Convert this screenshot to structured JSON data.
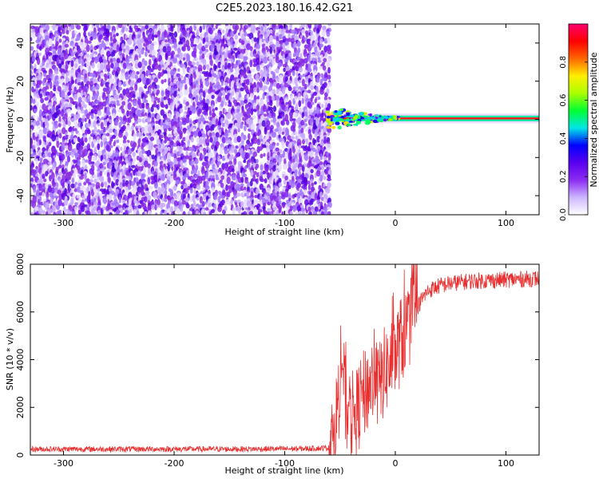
{
  "figure_title": "C2E5.2023.180.16.42.G21",
  "colors": {
    "snr_line": "#e83030",
    "axis": "#000000",
    "colormap": [
      "#ffffff",
      "#cdb6ff",
      "#8b2cf2",
      "#5a00f0",
      "#0000ff",
      "#00e6e6",
      "#00ff33",
      "#aaff00",
      "#ffee00",
      "#ff6600",
      "#ff0000",
      "#ff0070"
    ]
  },
  "chart_data": [
    {
      "type": "heatmap",
      "xlabel": "Height of straight line (km)",
      "ylabel": "Frequency (Hz)",
      "xlim": [
        -330,
        130
      ],
      "ylim": [
        -50,
        50
      ],
      "xticks": [
        -300,
        -200,
        -100,
        0,
        100
      ],
      "yticks": [
        -40,
        -20,
        0,
        20,
        40
      ],
      "noise_region_x": [
        -330,
        -60
      ],
      "carrier_freq": 0.5,
      "carrier_onset_x": -62,
      "colorbar": {
        "label": "Normalized spectral amplitude",
        "range": [
          0,
          1
        ],
        "ticks": [
          0.0,
          0.2,
          0.4,
          0.6,
          0.8
        ]
      }
    },
    {
      "type": "line",
      "xlabel": "Height of straight line (km)",
      "ylabel": "SNR (10 * v/v)",
      "xlim": [
        -330,
        130
      ],
      "ylim": [
        0,
        8000
      ],
      "xticks": [
        -300,
        -200,
        -100,
        0,
        100
      ],
      "yticks": [
        0,
        2000,
        4000,
        6000,
        8000
      ],
      "series": [
        {
          "x": [
            -330,
            -300,
            -250,
            -200,
            -150,
            -100,
            -80,
            -60,
            -55,
            -50,
            -48,
            -45,
            -40,
            -35,
            -30,
            -25,
            -20,
            -15,
            -10,
            -5,
            0,
            5,
            10,
            15,
            20,
            25,
            30,
            40,
            50,
            70,
            100,
            130
          ],
          "y": [
            250,
            250,
            250,
            250,
            250,
            260,
            270,
            300,
            900,
            3000,
            4200,
            2000,
            1600,
            1800,
            2400,
            2800,
            3200,
            2800,
            3500,
            3800,
            4200,
            4800,
            5200,
            5800,
            6200,
            6600,
            6900,
            7100,
            7200,
            7300,
            7350,
            7400
          ]
        }
      ]
    }
  ]
}
